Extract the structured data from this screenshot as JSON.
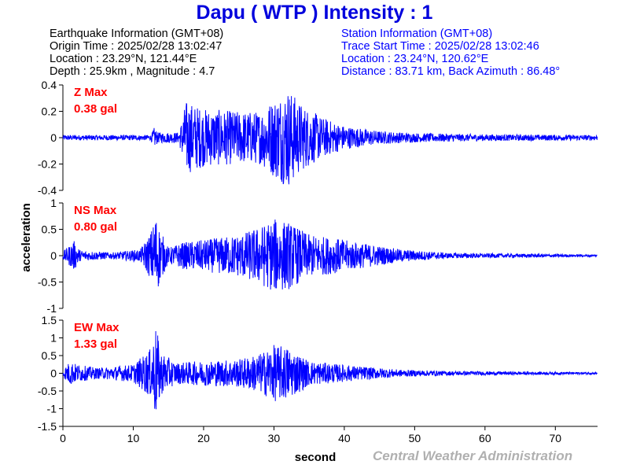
{
  "title": "Dapu  ( WTP )  Intensity : 1",
  "earthquake": {
    "heading": "Earthquake Information  (GMT+08)",
    "origin_time": "Origin Time : 2025/02/28 13:02:47",
    "location": "Location : 23.29°N, 121.44°E",
    "depth_magnitude": "Depth : 25.9km , Magnitude : 4.7"
  },
  "station": {
    "heading": "Station Information  (GMT+08)",
    "trace_start": "Trace Start Time : 2025/02/28 13:02:46",
    "location": "Location : 23.24°N, 120.62°E",
    "distance": "Distance : 83.71 km, Back Azimuth : 86.48°"
  },
  "credit": "Central Weather Administration",
  "colors": {
    "title": "#0000dd",
    "trace": "#0000ff",
    "max_label": "#ff0000",
    "credit": "#b0b0b0"
  },
  "chart_data": {
    "type": "line",
    "xlabel": "second",
    "ylabel": "acceleration",
    "xlim": [
      0,
      76
    ],
    "xticks": [
      "0",
      "10",
      "20",
      "30",
      "40",
      "50",
      "60",
      "70"
    ],
    "panels": [
      {
        "component": "Z",
        "max_label": "Z Max",
        "max_value": "0.38 gal",
        "ylim": [
          -0.4,
          0.4
        ],
        "yticks": [
          "0.4",
          "0.2",
          "0",
          "-0.2",
          "-0.4"
        ],
        "envelope": [
          [
            0,
            0.02
          ],
          [
            12.5,
            0.02
          ],
          [
            13.0,
            0.08
          ],
          [
            13.5,
            0.04
          ],
          [
            16.5,
            0.04
          ],
          [
            17.5,
            0.28
          ],
          [
            20,
            0.22
          ],
          [
            25,
            0.2
          ],
          [
            28,
            0.2
          ],
          [
            30,
            0.3
          ],
          [
            32,
            0.38
          ],
          [
            34,
            0.25
          ],
          [
            37,
            0.15
          ],
          [
            40,
            0.09
          ],
          [
            45,
            0.05
          ],
          [
            50,
            0.035
          ],
          [
            60,
            0.025
          ],
          [
            76,
            0.02
          ]
        ]
      },
      {
        "component": "NS",
        "max_label": "NS Max",
        "max_value": "0.80 gal",
        "ylim": [
          -1,
          1
        ],
        "yticks": [
          "1",
          "0.5",
          "0",
          "-0.5",
          "-1"
        ],
        "envelope": [
          [
            0,
            0.08
          ],
          [
            1,
            0.2
          ],
          [
            1.5,
            0.3
          ],
          [
            2.5,
            0.1
          ],
          [
            7,
            0.06
          ],
          [
            11,
            0.12
          ],
          [
            12.5,
            0.45
          ],
          [
            13.2,
            0.8
          ],
          [
            13.8,
            0.5
          ],
          [
            15,
            0.15
          ],
          [
            17,
            0.25
          ],
          [
            20,
            0.3
          ],
          [
            25,
            0.4
          ],
          [
            28,
            0.55
          ],
          [
            30,
            0.7
          ],
          [
            32,
            0.65
          ],
          [
            35,
            0.4
          ],
          [
            38,
            0.35
          ],
          [
            42,
            0.25
          ],
          [
            48,
            0.12
          ],
          [
            55,
            0.05
          ],
          [
            76,
            0.02
          ]
        ]
      },
      {
        "component": "EW",
        "max_label": "EW Max",
        "max_value": "1.33 gal",
        "ylim": [
          -1.5,
          1.5
        ],
        "yticks": [
          "1.5",
          "1",
          "0.5",
          "0",
          "-0.5",
          "-1",
          "-1.5"
        ],
        "envelope": [
          [
            0,
            0.1
          ],
          [
            1,
            0.35
          ],
          [
            2,
            0.25
          ],
          [
            5,
            0.15
          ],
          [
            10,
            0.25
          ],
          [
            12.5,
            0.7
          ],
          [
            13.2,
            1.33
          ],
          [
            14,
            0.6
          ],
          [
            16,
            0.3
          ],
          [
            20,
            0.35
          ],
          [
            25,
            0.4
          ],
          [
            28,
            0.55
          ],
          [
            30,
            0.8
          ],
          [
            32,
            0.75
          ],
          [
            35,
            0.35
          ],
          [
            38,
            0.28
          ],
          [
            42,
            0.2
          ],
          [
            48,
            0.1
          ],
          [
            55,
            0.06
          ],
          [
            76,
            0.03
          ]
        ]
      }
    ]
  }
}
